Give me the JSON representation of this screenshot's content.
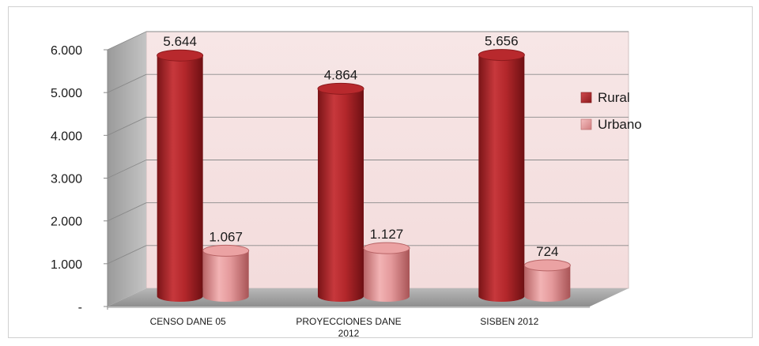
{
  "chart_data": {
    "type": "bar",
    "title": "",
    "xlabel": "",
    "ylabel": "",
    "categories": [
      "CENSO DANE 05",
      "PROYECCIONES DANE 2012",
      "SISBEN 2012"
    ],
    "series": [
      {
        "name": "Rural",
        "values": [
          5644,
          4864,
          5656
        ],
        "labels": [
          "5.644",
          "4.864",
          "5.656"
        ],
        "color": "#b3272b"
      },
      {
        "name": "Urbano",
        "values": [
          1067,
          1127,
          724
        ],
        "labels": [
          "1.067",
          "1.127",
          "724"
        ],
        "color": "#e8989a"
      }
    ],
    "ylim": [
      0,
      6000
    ],
    "y_ticks": [
      {
        "value": 0,
        "label": "-"
      },
      {
        "value": 1000,
        "label": "1.000"
      },
      {
        "value": 2000,
        "label": "2.000"
      },
      {
        "value": 3000,
        "label": "3.000"
      },
      {
        "value": 4000,
        "label": "4.000"
      },
      {
        "value": 5000,
        "label": "5.000"
      },
      {
        "value": 6000,
        "label": "6.000"
      }
    ],
    "grid": true,
    "legend_position": "right",
    "style": "3d-cylinder"
  }
}
